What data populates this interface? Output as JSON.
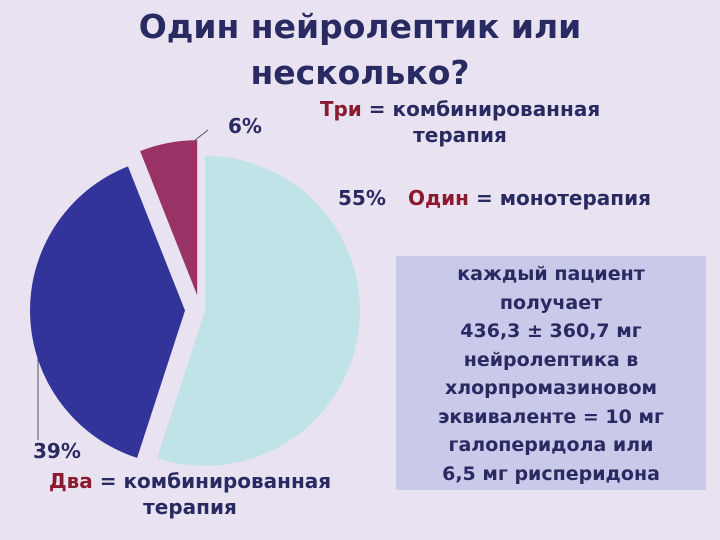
{
  "chart_data": {
    "type": "pie",
    "title": "Один нейролептик или несколько?",
    "categories": [
      "Один",
      "Два",
      "Три"
    ],
    "descriptions": [
      "= монотерапия",
      "= комбинированная терапия",
      "= комбинированная терапия"
    ],
    "values": [
      55,
      39,
      6
    ],
    "value_labels": [
      "55%",
      "39%",
      "6%"
    ],
    "colors": [
      "#bfe3e6",
      "#33349a",
      "#993366"
    ],
    "note": [
      "каждый пациент",
      "получает",
      "436,3 ± 360,7 мг",
      "нейролептика в",
      "хлорпромазиновом",
      "эквиваленте = 10 мг",
      "галоперидола или",
      "6,5 мг рисперидона"
    ]
  }
}
